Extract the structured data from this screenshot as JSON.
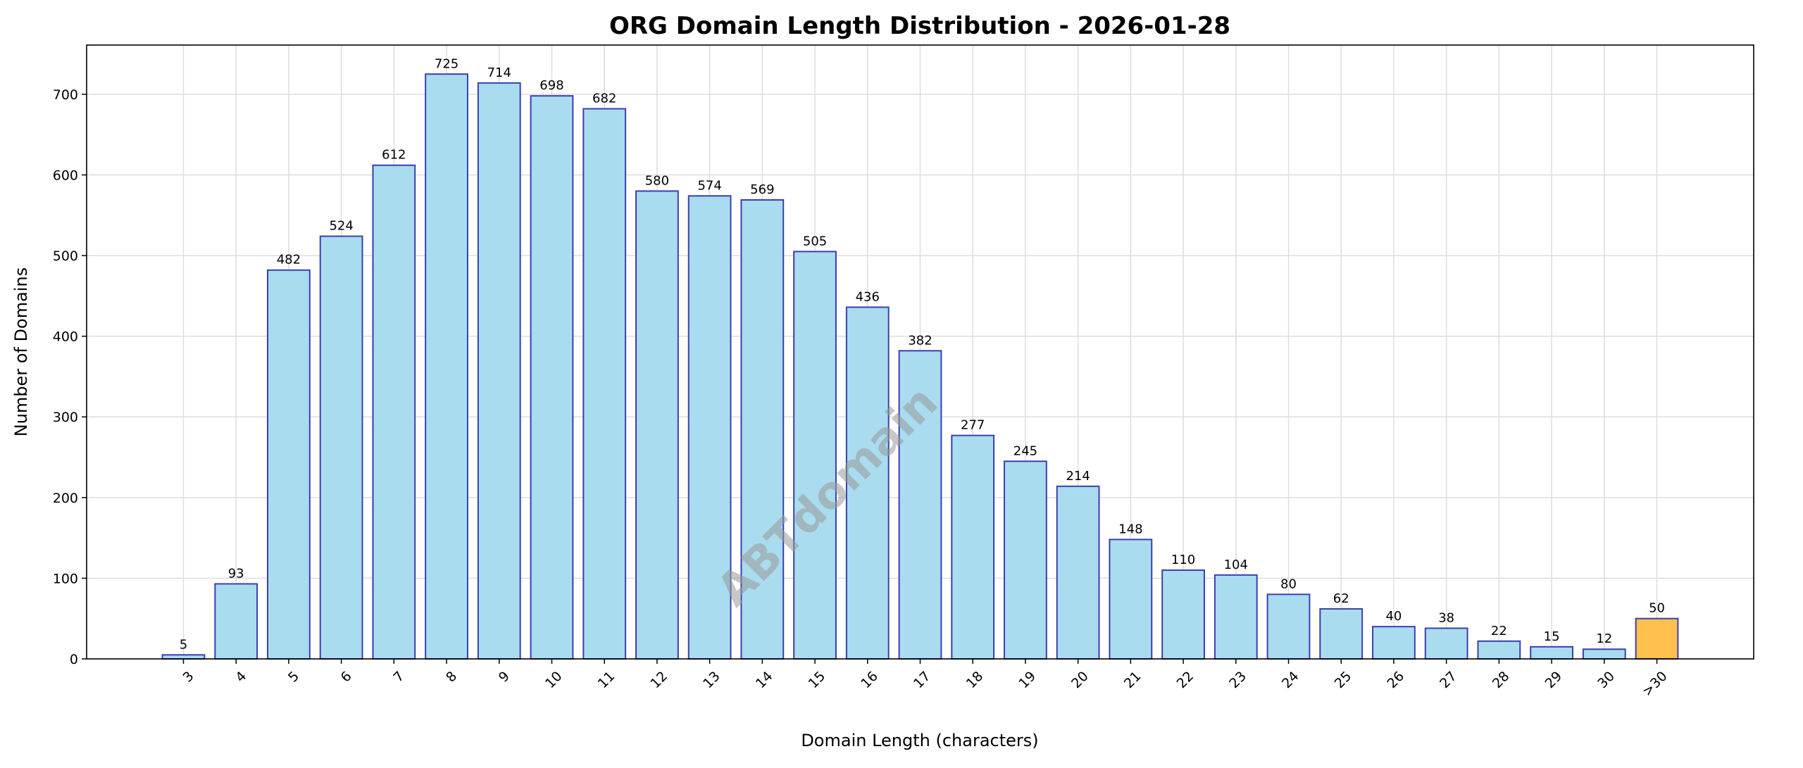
{
  "chart_data": {
    "type": "bar",
    "title": "ORG Domain Length Distribution - 2026-01-28",
    "xlabel": "Domain Length (characters)",
    "ylabel": "Number of Domains",
    "categories": [
      "3",
      "4",
      "5",
      "6",
      "7",
      "8",
      "9",
      "10",
      "11",
      "12",
      "13",
      "14",
      "15",
      "16",
      "17",
      "18",
      "19",
      "20",
      "21",
      "22",
      "23",
      "24",
      "25",
      "26",
      "27",
      "28",
      "29",
      "30",
      ">30"
    ],
    "values": [
      5,
      93,
      482,
      524,
      612,
      725,
      714,
      698,
      682,
      580,
      574,
      569,
      505,
      436,
      382,
      277,
      245,
      214,
      148,
      110,
      104,
      80,
      62,
      40,
      38,
      22,
      15,
      12,
      50
    ],
    "ylim": [
      0,
      761
    ],
    "yticks": [
      0,
      100,
      200,
      300,
      400,
      500,
      600,
      700
    ],
    "grid": true,
    "colors": {
      "bar": "#a9dcef",
      "bar_edge": "#3a3fb0",
      "highlight_bar": "#ffc04d",
      "highlight_edge": "#3a3fb0"
    },
    "highlight_category": ">30",
    "watermark": "ABTdomain"
  }
}
